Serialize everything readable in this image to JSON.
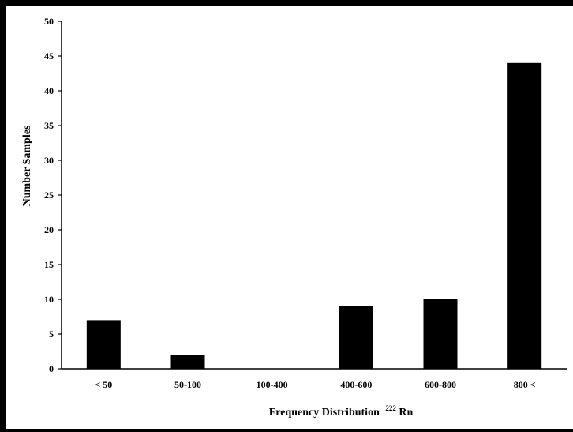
{
  "chart_data": {
    "type": "bar",
    "categories": [
      "< 50",
      "50-100",
      "100-400",
      "400-600",
      "600-800",
      "800 <"
    ],
    "values": [
      7,
      2,
      0,
      9,
      10,
      44
    ],
    "title": "",
    "xlabel": "Frequency Distribution",
    "xlabel_superscript": "222",
    "xlabel_suffix": "Rn",
    "ylabel": "Number Samples",
    "ylim": [
      0,
      50
    ],
    "yticks": [
      0,
      5,
      10,
      15,
      20,
      25,
      30,
      35,
      40,
      45,
      50
    ],
    "grid": false,
    "legend": "none",
    "bar_color": "#000000"
  }
}
